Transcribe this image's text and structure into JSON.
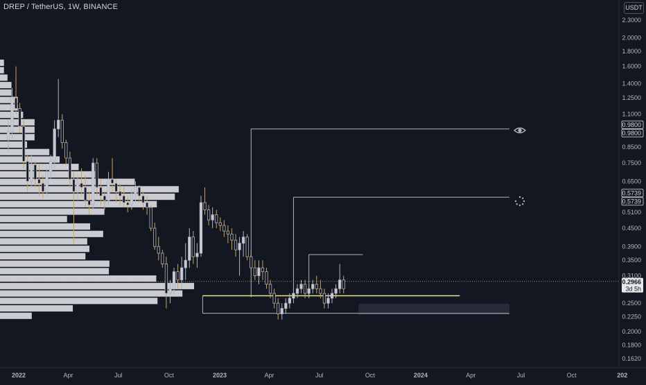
{
  "header": {
    "symbol_label": "DREP / TetherUS, 1W, BINANCE"
  },
  "price_scale": {
    "currency_label": "USDT",
    "scale": "log",
    "range": [
      0.155,
      2.55
    ],
    "ticks": [
      2.3,
      2.0,
      1.8,
      1.6,
      1.4,
      1.25,
      1.1,
      0.98,
      0.85,
      0.75,
      0.65,
      0.573,
      0.51,
      0.45,
      0.39,
      0.35,
      0.31,
      0.28,
      0.25,
      0.225,
      0.2,
      0.18,
      0.162
    ],
    "tick_labels": [
      "2.3000",
      "2.0000",
      "1.8000",
      "1.6000",
      "1.4000",
      "1.2500",
      "1.1000",
      "0.9800",
      "0.8500",
      "0.7500",
      "0.6500",
      "0.5730",
      "0.5100",
      "0.4500",
      "0.3900",
      "0.3500",
      "0.3100",
      "0.2800",
      "0.2500",
      "0.2250",
      "0.2000",
      "0.1800",
      "0.1620"
    ],
    "tags": [
      {
        "value": 0.98,
        "label": "0.9800",
        "style": "outline"
      },
      {
        "value": 0.98,
        "label": "0.9800",
        "style": "outline"
      },
      {
        "value": 0.5739,
        "label": "0.5739",
        "style": "outline"
      },
      {
        "value": 0.5739,
        "label": "0.5739",
        "style": "outline"
      }
    ],
    "last_price": {
      "value": 0.2966,
      "label": "0.2966",
      "countdown": "3d 5h"
    }
  },
  "time_scale": {
    "labels": [
      "2022",
      "Apr",
      "Jul",
      "Oct",
      "2023",
      "Apr",
      "Jul",
      "Oct",
      "2024",
      "Apr",
      "Jul",
      "Oct",
      "202"
    ],
    "dates": [
      "2022-01-01",
      "2022-04-01",
      "2022-07-01",
      "2022-10-01",
      "2023-01-01",
      "2023-04-01",
      "2023-07-01",
      "2023-10-01",
      "2024-01-01",
      "2024-04-01",
      "2024-07-01",
      "2024-10-01",
      "2025-01-01"
    ],
    "bold": [
      "2022",
      "2023",
      "2024",
      "202"
    ]
  },
  "drawings": {
    "levels": [
      {
        "name": "level-098",
        "value": 0.98,
        "start": "2023-02-27",
        "end": "2024-06-10"
      },
      {
        "name": "level-05739",
        "value": 0.5739,
        "start": "2023-05-15",
        "end": "2024-06-10"
      },
      {
        "name": "level-0366",
        "value": 0.366,
        "start": "2023-06-12",
        "end": "2023-09-18"
      },
      {
        "name": "level-0265",
        "value": 0.265,
        "start": "2022-12-01",
        "end": "2024-03-12"
      },
      {
        "name": "level-0231",
        "value": 0.231,
        "start": "2022-12-01",
        "end": "2024-06-10"
      }
    ],
    "support_zone": {
      "low": 0.228,
      "high": 0.249,
      "start": "2023-09-10",
      "end": "2024-06-10"
    },
    "level_colors": {
      "level": "#b2b5be",
      "support": "#f0e18c",
      "zone": "#2a2e39"
    }
  },
  "icons": {
    "eye": "eye-icon",
    "loading": "loading-spinner-icon"
  },
  "colors": {
    "background": "#131722",
    "candle_body": "#c9cbd2",
    "candle_outline": "#b2b5be",
    "wick_up": "#b2b5be",
    "wick_down": "#d4a24c",
    "volume_profile": "#dfe0e4",
    "last_price_line": "#d4a24c",
    "last_price_tag": "#e7e8ec"
  },
  "chart_data": {
    "type": "candlestick",
    "symbol": "DREP / TetherUS",
    "interval": "1W",
    "exchange": "BINANCE",
    "y_scale": "log",
    "x_start": "2021-12-13",
    "x_step_days": 7,
    "candles": [
      [
        0.9,
        1.05,
        0.82,
        0.96
      ],
      [
        0.96,
        1.35,
        0.9,
        1.25
      ],
      [
        1.25,
        1.6,
        1.1,
        1.15
      ],
      [
        1.15,
        1.2,
        0.95,
        1.0
      ],
      [
        1.0,
        1.05,
        0.72,
        0.76
      ],
      [
        0.76,
        0.8,
        0.6,
        0.65
      ],
      [
        0.65,
        0.8,
        0.62,
        0.74
      ],
      [
        0.74,
        0.76,
        0.62,
        0.66
      ],
      [
        0.66,
        0.74,
        0.58,
        0.64
      ],
      [
        0.64,
        0.68,
        0.57,
        0.6
      ],
      [
        0.6,
        0.72,
        0.58,
        0.7
      ],
      [
        0.7,
        0.8,
        0.66,
        0.76
      ],
      [
        0.76,
        1.05,
        0.72,
        0.98
      ],
      [
        0.98,
        1.45,
        0.92,
        1.05
      ],
      [
        1.05,
        1.1,
        0.84,
        0.88
      ],
      [
        0.88,
        0.9,
        0.74,
        0.78
      ],
      [
        0.78,
        0.82,
        0.62,
        0.66
      ],
      [
        0.66,
        0.7,
        0.4,
        0.6
      ],
      [
        0.6,
        0.68,
        0.56,
        0.64
      ],
      [
        0.64,
        0.72,
        0.58,
        0.62
      ],
      [
        0.62,
        0.68,
        0.53,
        0.56
      ],
      [
        0.56,
        0.6,
        0.5,
        0.54
      ],
      [
        0.54,
        0.78,
        0.52,
        0.75
      ],
      [
        0.75,
        0.78,
        0.58,
        0.62
      ],
      [
        0.62,
        0.66,
        0.54,
        0.58
      ],
      [
        0.58,
        0.6,
        0.52,
        0.56
      ],
      [
        0.56,
        0.7,
        0.54,
        0.66
      ],
      [
        0.66,
        0.78,
        0.6,
        0.64
      ],
      [
        0.64,
        0.66,
        0.55,
        0.6
      ],
      [
        0.6,
        0.64,
        0.54,
        0.58
      ],
      [
        0.58,
        0.62,
        0.53,
        0.55
      ],
      [
        0.55,
        0.58,
        0.51,
        0.54
      ],
      [
        0.54,
        0.62,
        0.52,
        0.59
      ],
      [
        0.59,
        0.65,
        0.55,
        0.62
      ],
      [
        0.62,
        0.63,
        0.55,
        0.58
      ],
      [
        0.58,
        0.6,
        0.52,
        0.55
      ],
      [
        0.55,
        0.58,
        0.5,
        0.53
      ],
      [
        0.53,
        0.54,
        0.44,
        0.45
      ],
      [
        0.45,
        0.47,
        0.38,
        0.39
      ],
      [
        0.39,
        0.42,
        0.35,
        0.37
      ],
      [
        0.37,
        0.38,
        0.33,
        0.34
      ],
      [
        0.34,
        0.36,
        0.24,
        0.27
      ],
      [
        0.27,
        0.3,
        0.25,
        0.28
      ],
      [
        0.28,
        0.33,
        0.27,
        0.32
      ],
      [
        0.32,
        0.34,
        0.28,
        0.3
      ],
      [
        0.3,
        0.36,
        0.28,
        0.33
      ],
      [
        0.33,
        0.4,
        0.3,
        0.35
      ],
      [
        0.35,
        0.45,
        0.33,
        0.42
      ],
      [
        0.42,
        0.44,
        0.34,
        0.36
      ],
      [
        0.36,
        0.4,
        0.33,
        0.37
      ],
      [
        0.37,
        0.58,
        0.36,
        0.55
      ],
      [
        0.55,
        0.62,
        0.5,
        0.52
      ],
      [
        0.52,
        0.54,
        0.46,
        0.48
      ],
      [
        0.48,
        0.53,
        0.45,
        0.5
      ],
      [
        0.5,
        0.52,
        0.45,
        0.47
      ],
      [
        0.47,
        0.49,
        0.44,
        0.46
      ],
      [
        0.46,
        0.48,
        0.42,
        0.44
      ],
      [
        0.44,
        0.46,
        0.4,
        0.43
      ],
      [
        0.43,
        0.45,
        0.38,
        0.41
      ],
      [
        0.41,
        0.43,
        0.36,
        0.38
      ],
      [
        0.38,
        0.42,
        0.31,
        0.4
      ],
      [
        0.4,
        0.44,
        0.36,
        0.42
      ],
      [
        0.42,
        0.43,
        0.35,
        0.36
      ],
      [
        0.36,
        0.38,
        0.32,
        0.33
      ],
      [
        0.33,
        0.35,
        0.3,
        0.31
      ],
      [
        0.31,
        0.35,
        0.29,
        0.33
      ],
      [
        0.33,
        0.35,
        0.3,
        0.32
      ],
      [
        0.32,
        0.33,
        0.28,
        0.29
      ],
      [
        0.29,
        0.3,
        0.26,
        0.27
      ],
      [
        0.27,
        0.28,
        0.24,
        0.25
      ],
      [
        0.25,
        0.26,
        0.22,
        0.23
      ],
      [
        0.23,
        0.25,
        0.22,
        0.24
      ],
      [
        0.24,
        0.26,
        0.23,
        0.25
      ],
      [
        0.25,
        0.27,
        0.24,
        0.26
      ],
      [
        0.26,
        0.28,
        0.25,
        0.27
      ],
      [
        0.27,
        0.29,
        0.26,
        0.28
      ],
      [
        0.28,
        0.3,
        0.27,
        0.29
      ],
      [
        0.29,
        0.3,
        0.26,
        0.27
      ],
      [
        0.27,
        0.29,
        0.26,
        0.28
      ],
      [
        0.28,
        0.3,
        0.27,
        0.29
      ],
      [
        0.29,
        0.31,
        0.27,
        0.28
      ],
      [
        0.28,
        0.3,
        0.26,
        0.27
      ],
      [
        0.27,
        0.28,
        0.24,
        0.25
      ],
      [
        0.25,
        0.27,
        0.24,
        0.26
      ],
      [
        0.26,
        0.28,
        0.25,
        0.27
      ],
      [
        0.27,
        0.29,
        0.26,
        0.28
      ],
      [
        0.28,
        0.34,
        0.27,
        0.3
      ],
      [
        0.3,
        0.31,
        0.27,
        0.28
      ]
    ]
  }
}
